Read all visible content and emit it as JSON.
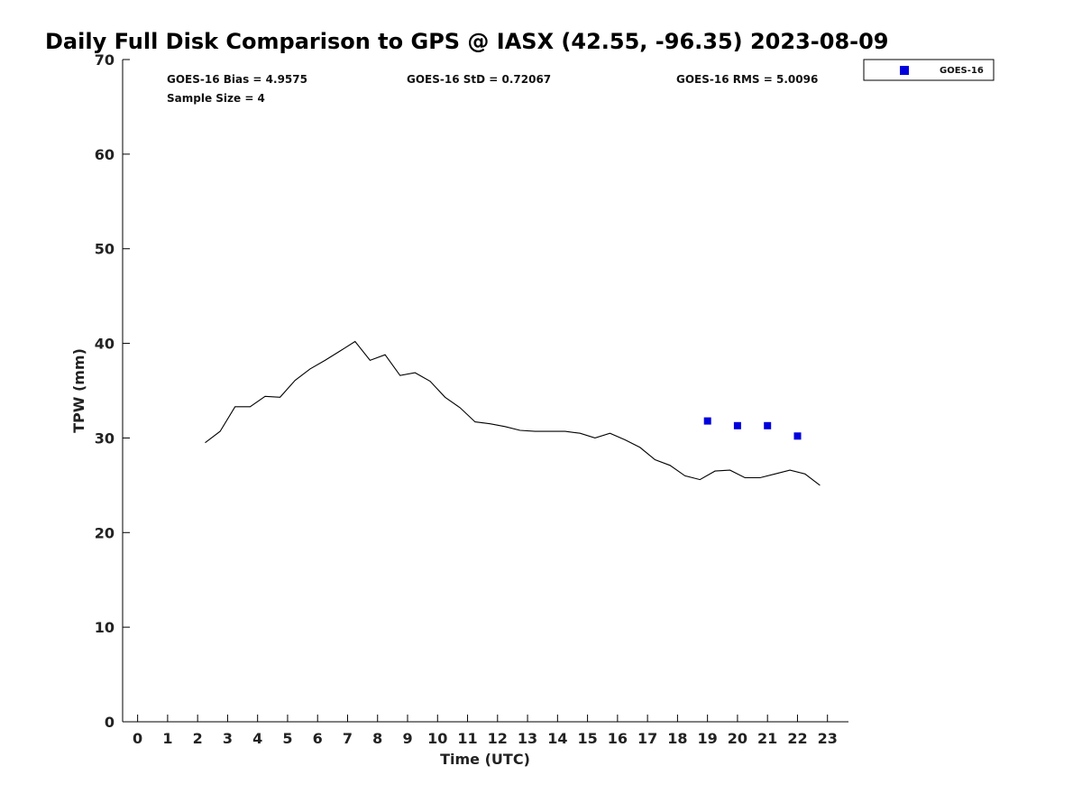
{
  "chart_data": {
    "type": "scatter",
    "title": "Daily Full Disk Comparison to GPS @ IASX (42.55, -96.35) 2023-08-09",
    "xlabel": "Time (UTC)",
    "ylabel": "TPW (mm)",
    "xlim": [
      -0.5,
      23.7
    ],
    "ylim": [
      0,
      70
    ],
    "x_ticks": [
      "0",
      "1",
      "2",
      "3",
      "4",
      "5",
      "6",
      "7",
      "8",
      "9",
      "10",
      "11",
      "12",
      "13",
      "14",
      "15",
      "16",
      "17",
      "18",
      "19",
      "20",
      "21",
      "22",
      "23"
    ],
    "y_ticks": [
      "0",
      "10",
      "20",
      "30",
      "40",
      "50",
      "60",
      "70"
    ],
    "grid": false,
    "legend_position": "top-right",
    "stats": {
      "bias": "GOES-16 Bias = 4.9575",
      "std": "GOES-16 StD = 0.72067",
      "rms": "GOES-16 RMS = 5.0096",
      "sample": "Sample Size = 4"
    },
    "series": [
      {
        "kind": "line",
        "color": "#000000",
        "x": [
          2.25,
          2.75,
          3.25,
          3.75,
          4.25,
          4.75,
          5.25,
          5.75,
          6.25,
          6.75,
          7.25,
          7.75,
          8.25,
          8.75,
          9.25,
          9.75,
          10.25,
          10.75,
          11.25,
          11.75,
          12.25,
          12.75,
          13.25,
          13.75,
          14.25,
          14.75,
          15.25,
          15.75,
          16.25,
          16.75,
          17.25,
          17.75,
          18.25,
          18.75,
          19.25,
          19.75,
          20.25,
          20.75,
          21.25,
          21.75,
          22.25,
          22.75
        ],
        "y": [
          29.5,
          30.7,
          33.3,
          33.3,
          34.4,
          34.3,
          36.1,
          37.3,
          38.2,
          39.2,
          40.2,
          38.2,
          38.8,
          36.6,
          36.9,
          36.0,
          34.3,
          33.2,
          31.7,
          31.5,
          31.2,
          30.8,
          30.7,
          30.7,
          30.7,
          30.5,
          30.0,
          30.5,
          29.8,
          29.0,
          27.7,
          27.1,
          26.0,
          25.6,
          26.5,
          26.6,
          25.8,
          25.8,
          26.2,
          26.6,
          26.2,
          25.0
        ]
      },
      {
        "kind": "scatter",
        "name": "GOES-16",
        "color": "#0000dd",
        "x": [
          19,
          20,
          21,
          22
        ],
        "y": [
          31.8,
          31.3,
          31.3,
          30.2
        ]
      }
    ]
  }
}
